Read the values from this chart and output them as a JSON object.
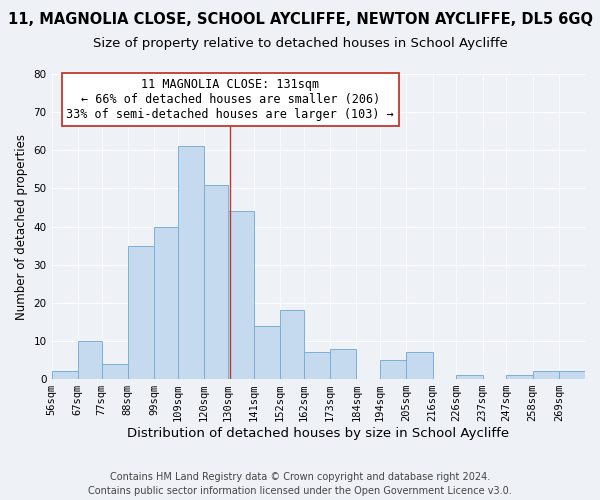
{
  "title": "11, MAGNOLIA CLOSE, SCHOOL AYCLIFFE, NEWTON AYCLIFFE, DL5 6GQ",
  "subtitle": "Size of property relative to detached houses in School Aycliffe",
  "xlabel": "Distribution of detached houses by size in School Aycliffe",
  "ylabel": "Number of detached properties",
  "bin_labels": [
    "56sqm",
    "67sqm",
    "77sqm",
    "88sqm",
    "99sqm",
    "109sqm",
    "120sqm",
    "130sqm",
    "141sqm",
    "152sqm",
    "162sqm",
    "173sqm",
    "184sqm",
    "194sqm",
    "205sqm",
    "216sqm",
    "226sqm",
    "237sqm",
    "247sqm",
    "258sqm",
    "269sqm"
  ],
  "bar_values": [
    2,
    10,
    4,
    35,
    40,
    61,
    51,
    44,
    14,
    18,
    7,
    8,
    0,
    5,
    7,
    0,
    1,
    0,
    1,
    2,
    2
  ],
  "bin_starts": [
    56,
    67,
    77,
    88,
    99,
    109,
    120,
    130,
    141,
    152,
    162,
    173,
    184,
    194,
    205,
    216,
    226,
    237,
    247,
    258,
    269
  ],
  "bar_color": "#c6daef",
  "bar_edge_color": "#7ab0d4",
  "vline_x": 131,
  "vline_color": "#c0392b",
  "annotation_line1": "11 MAGNOLIA CLOSE: 131sqm",
  "annotation_line2": "← 66% of detached houses are smaller (206)",
  "annotation_line3": "33% of semi-detached houses are larger (103) →",
  "annotation_box_color": "#ffffff",
  "annotation_box_edge": "#c0392b",
  "ylim": [
    0,
    80
  ],
  "yticks": [
    0,
    10,
    20,
    30,
    40,
    50,
    60,
    70,
    80
  ],
  "footer_line1": "Contains HM Land Registry data © Crown copyright and database right 2024.",
  "footer_line2": "Contains public sector information licensed under the Open Government Licence v3.0.",
  "bg_color": "#eef2f7",
  "grid_color": "#ffffff",
  "title_fontsize": 10.5,
  "subtitle_fontsize": 9.5,
  "xlabel_fontsize": 9.5,
  "ylabel_fontsize": 8.5,
  "tick_fontsize": 7.5,
  "annot_fontsize": 8.5,
  "footer_fontsize": 7
}
